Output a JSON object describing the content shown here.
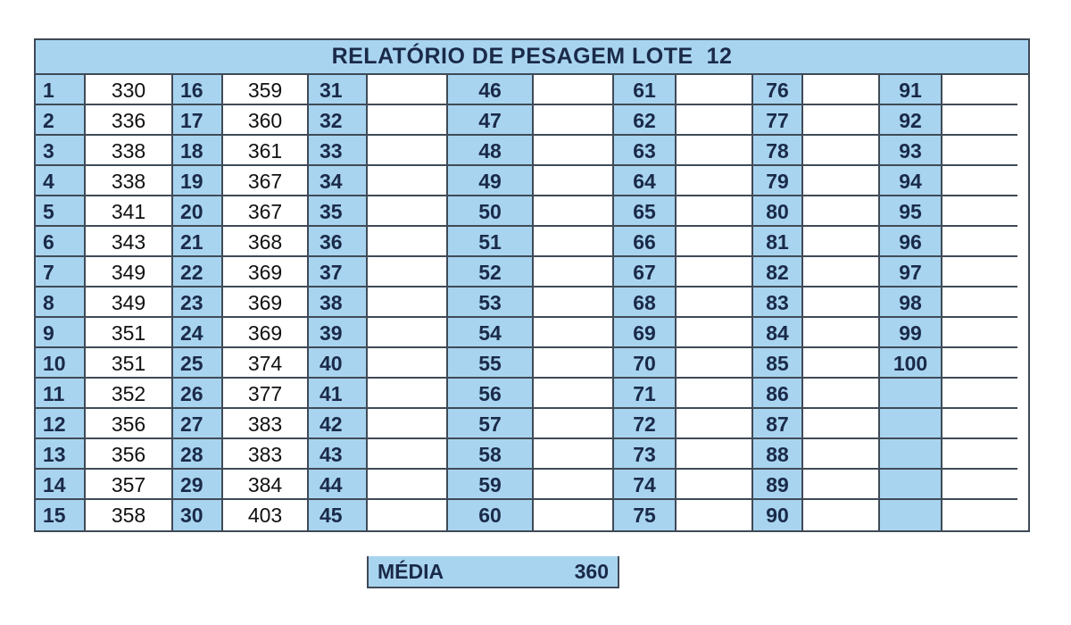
{
  "title": "RELATÓRIO DE PESAGEM LOTE  12",
  "colors": {
    "header_fill": "#a8d4f0",
    "grid_line": "#3f4a56",
    "number_text": "#1a2a48"
  },
  "groups": [
    {
      "numbers": [
        "1",
        "2",
        "3",
        "4",
        "5",
        "6",
        "7",
        "8",
        "9",
        "10",
        "11",
        "12",
        "13",
        "14",
        "15"
      ],
      "weights": [
        "330",
        "336",
        "338",
        "338",
        "341",
        "343",
        "349",
        "349",
        "351",
        "351",
        "352",
        "356",
        "356",
        "357",
        "358"
      ]
    },
    {
      "numbers": [
        "16",
        "17",
        "18",
        "19",
        "20",
        "21",
        "22",
        "23",
        "24",
        "25",
        "26",
        "27",
        "28",
        "29",
        "30"
      ],
      "weights": [
        "359",
        "360",
        "361",
        "367",
        "367",
        "368",
        "369",
        "369",
        "369",
        "374",
        "377",
        "383",
        "383",
        "384",
        "403"
      ]
    },
    {
      "numbers": [
        "31",
        "32",
        "33",
        "34",
        "35",
        "36",
        "37",
        "38",
        "39",
        "40",
        "41",
        "42",
        "43",
        "44",
        "45"
      ],
      "weights": [
        "",
        "",
        "",
        "",
        "",
        "",
        "",
        "",
        "",
        "",
        "",
        "",
        "",
        "",
        ""
      ]
    },
    {
      "numbers": [
        "46",
        "47",
        "48",
        "49",
        "50",
        "51",
        "52",
        "53",
        "54",
        "55",
        "56",
        "57",
        "58",
        "59",
        "60"
      ],
      "weights": [
        "",
        "",
        "",
        "",
        "",
        "",
        "",
        "",
        "",
        "",
        "",
        "",
        "",
        "",
        ""
      ]
    },
    {
      "numbers": [
        "61",
        "62",
        "63",
        "64",
        "65",
        "66",
        "67",
        "68",
        "69",
        "70",
        "71",
        "72",
        "73",
        "74",
        "75"
      ],
      "weights": [
        "",
        "",
        "",
        "",
        "",
        "",
        "",
        "",
        "",
        "",
        "",
        "",
        "",
        "",
        ""
      ]
    },
    {
      "numbers": [
        "76",
        "77",
        "78",
        "79",
        "80",
        "81",
        "82",
        "83",
        "84",
        "85",
        "86",
        "87",
        "88",
        "89",
        "90"
      ],
      "weights": [
        "",
        "",
        "",
        "",
        "",
        "",
        "",
        "",
        "",
        "",
        "",
        "",
        "",
        "",
        ""
      ]
    },
    {
      "numbers": [
        "91",
        "92",
        "93",
        "94",
        "95",
        "96",
        "97",
        "98",
        "99",
        "100",
        "",
        "",
        "",
        "",
        ""
      ],
      "weights": [
        "",
        "",
        "",
        "",
        "",
        "",
        "",
        "",
        "",
        "",
        "",
        "",
        "",
        "",
        ""
      ]
    }
  ],
  "media": {
    "label": "MÉDIA",
    "value": "360"
  }
}
